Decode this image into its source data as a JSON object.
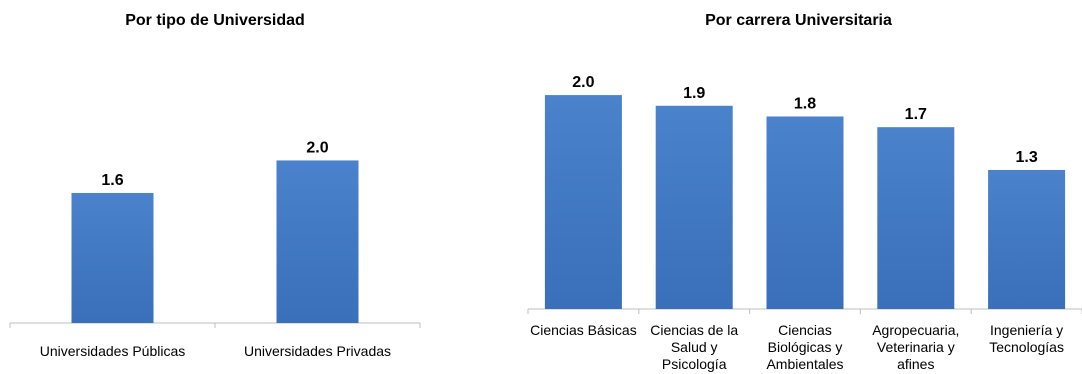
{
  "chart_data": [
    {
      "type": "bar",
      "title": "Por tipo de Universidad",
      "categories": [
        "Universidades Públicas",
        "Universidades Privadas"
      ],
      "values": [
        1.6,
        2.0
      ],
      "value_labels": [
        "1.6",
        "2.0"
      ],
      "xlabel": "",
      "ylabel": "",
      "ylim": [
        0,
        2.35
      ],
      "grid": false,
      "legend": "none",
      "bar_color": "#3a6fb9"
    },
    {
      "type": "bar",
      "title": "Por carrera Universitaria",
      "categories": [
        [
          "Ciencias Básicas"
        ],
        [
          "Ciencias de la",
          "Salud y",
          "Psicología"
        ],
        [
          "Ciencias",
          "Biológicas y",
          "Ambientales"
        ],
        [
          "Agropecuaria,",
          "Veterinaria y",
          "afines"
        ],
        [
          "Ingeniería y",
          "Tecnologías"
        ]
      ],
      "values": [
        2.0,
        1.9,
        1.8,
        1.7,
        1.3
      ],
      "value_labels": [
        "2.0",
        "1.9",
        "1.8",
        "1.7",
        "1.3"
      ],
      "xlabel": "",
      "ylabel": "",
      "ylim": [
        0,
        2.3
      ],
      "grid": false,
      "legend": "none",
      "bar_color": "#3a6fb9"
    }
  ]
}
